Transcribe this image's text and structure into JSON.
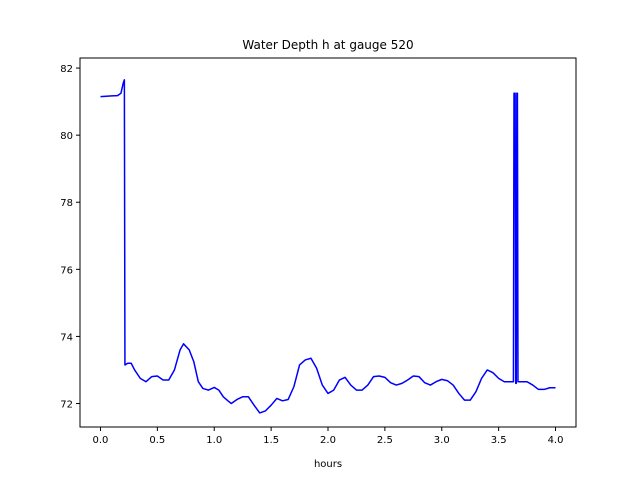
{
  "chart_data": {
    "type": "line",
    "title": "Water Depth h at gauge 520",
    "xlabel": "hours",
    "ylabel": "",
    "xlim": [
      -0.18,
      4.18
    ],
    "ylim": [
      71.3,
      82.3
    ],
    "xticks": [
      0.0,
      0.5,
      1.0,
      1.5,
      2.0,
      2.5,
      3.0,
      3.5,
      4.0
    ],
    "xtick_labels": [
      "0.0",
      "0.5",
      "1.0",
      "1.5",
      "2.0",
      "2.5",
      "3.0",
      "3.5",
      "4.0"
    ],
    "yticks": [
      72,
      74,
      76,
      78,
      80,
      82
    ],
    "ytick_labels": [
      "72",
      "74",
      "76",
      "78",
      "80",
      "82"
    ],
    "grid": false,
    "legend": "none",
    "series": [
      {
        "color": "#0000ff",
        "points": [
          [
            0.0,
            81.15
          ],
          [
            0.05,
            81.16
          ],
          [
            0.1,
            81.17
          ],
          [
            0.15,
            81.18
          ],
          [
            0.18,
            81.25
          ],
          [
            0.2,
            81.55
          ],
          [
            0.21,
            81.65
          ],
          [
            0.215,
            73.15
          ],
          [
            0.24,
            73.2
          ],
          [
            0.27,
            73.2
          ],
          [
            0.3,
            73.0
          ],
          [
            0.35,
            72.75
          ],
          [
            0.4,
            72.65
          ],
          [
            0.45,
            72.8
          ],
          [
            0.5,
            72.82
          ],
          [
            0.55,
            72.7
          ],
          [
            0.6,
            72.7
          ],
          [
            0.65,
            73.0
          ],
          [
            0.7,
            73.6
          ],
          [
            0.73,
            73.78
          ],
          [
            0.78,
            73.6
          ],
          [
            0.82,
            73.25
          ],
          [
            0.86,
            72.65
          ],
          [
            0.9,
            72.45
          ],
          [
            0.95,
            72.4
          ],
          [
            1.0,
            72.48
          ],
          [
            1.04,
            72.4
          ],
          [
            1.08,
            72.2
          ],
          [
            1.12,
            72.08
          ],
          [
            1.15,
            72.0
          ],
          [
            1.2,
            72.12
          ],
          [
            1.25,
            72.2
          ],
          [
            1.3,
            72.2
          ],
          [
            1.35,
            71.95
          ],
          [
            1.4,
            71.72
          ],
          [
            1.45,
            71.78
          ],
          [
            1.5,
            71.95
          ],
          [
            1.55,
            72.15
          ],
          [
            1.6,
            72.08
          ],
          [
            1.65,
            72.12
          ],
          [
            1.7,
            72.5
          ],
          [
            1.75,
            73.15
          ],
          [
            1.8,
            73.3
          ],
          [
            1.85,
            73.35
          ],
          [
            1.9,
            73.05
          ],
          [
            1.95,
            72.55
          ],
          [
            2.0,
            72.3
          ],
          [
            2.05,
            72.4
          ],
          [
            2.1,
            72.7
          ],
          [
            2.15,
            72.78
          ],
          [
            2.2,
            72.55
          ],
          [
            2.25,
            72.4
          ],
          [
            2.3,
            72.4
          ],
          [
            2.35,
            72.55
          ],
          [
            2.4,
            72.8
          ],
          [
            2.45,
            72.82
          ],
          [
            2.5,
            72.78
          ],
          [
            2.55,
            72.62
          ],
          [
            2.6,
            72.55
          ],
          [
            2.65,
            72.6
          ],
          [
            2.7,
            72.7
          ],
          [
            2.75,
            72.82
          ],
          [
            2.8,
            72.8
          ],
          [
            2.85,
            72.62
          ],
          [
            2.9,
            72.55
          ],
          [
            2.95,
            72.65
          ],
          [
            3.0,
            72.72
          ],
          [
            3.05,
            72.68
          ],
          [
            3.1,
            72.55
          ],
          [
            3.15,
            72.3
          ],
          [
            3.2,
            72.1
          ],
          [
            3.25,
            72.1
          ],
          [
            3.3,
            72.35
          ],
          [
            3.35,
            72.75
          ],
          [
            3.4,
            73.0
          ],
          [
            3.45,
            72.92
          ],
          [
            3.5,
            72.75
          ],
          [
            3.55,
            72.65
          ],
          [
            3.6,
            72.65
          ],
          [
            3.63,
            72.65
          ],
          [
            3.635,
            81.25
          ],
          [
            3.645,
            81.25
          ],
          [
            3.65,
            72.6
          ],
          [
            3.655,
            72.6
          ],
          [
            3.66,
            81.25
          ],
          [
            3.665,
            81.25
          ],
          [
            3.67,
            72.65
          ],
          [
            3.7,
            72.65
          ],
          [
            3.75,
            72.65
          ],
          [
            3.8,
            72.55
          ],
          [
            3.85,
            72.42
          ],
          [
            3.9,
            72.42
          ],
          [
            3.95,
            72.47
          ],
          [
            4.0,
            72.47
          ]
        ]
      }
    ]
  }
}
